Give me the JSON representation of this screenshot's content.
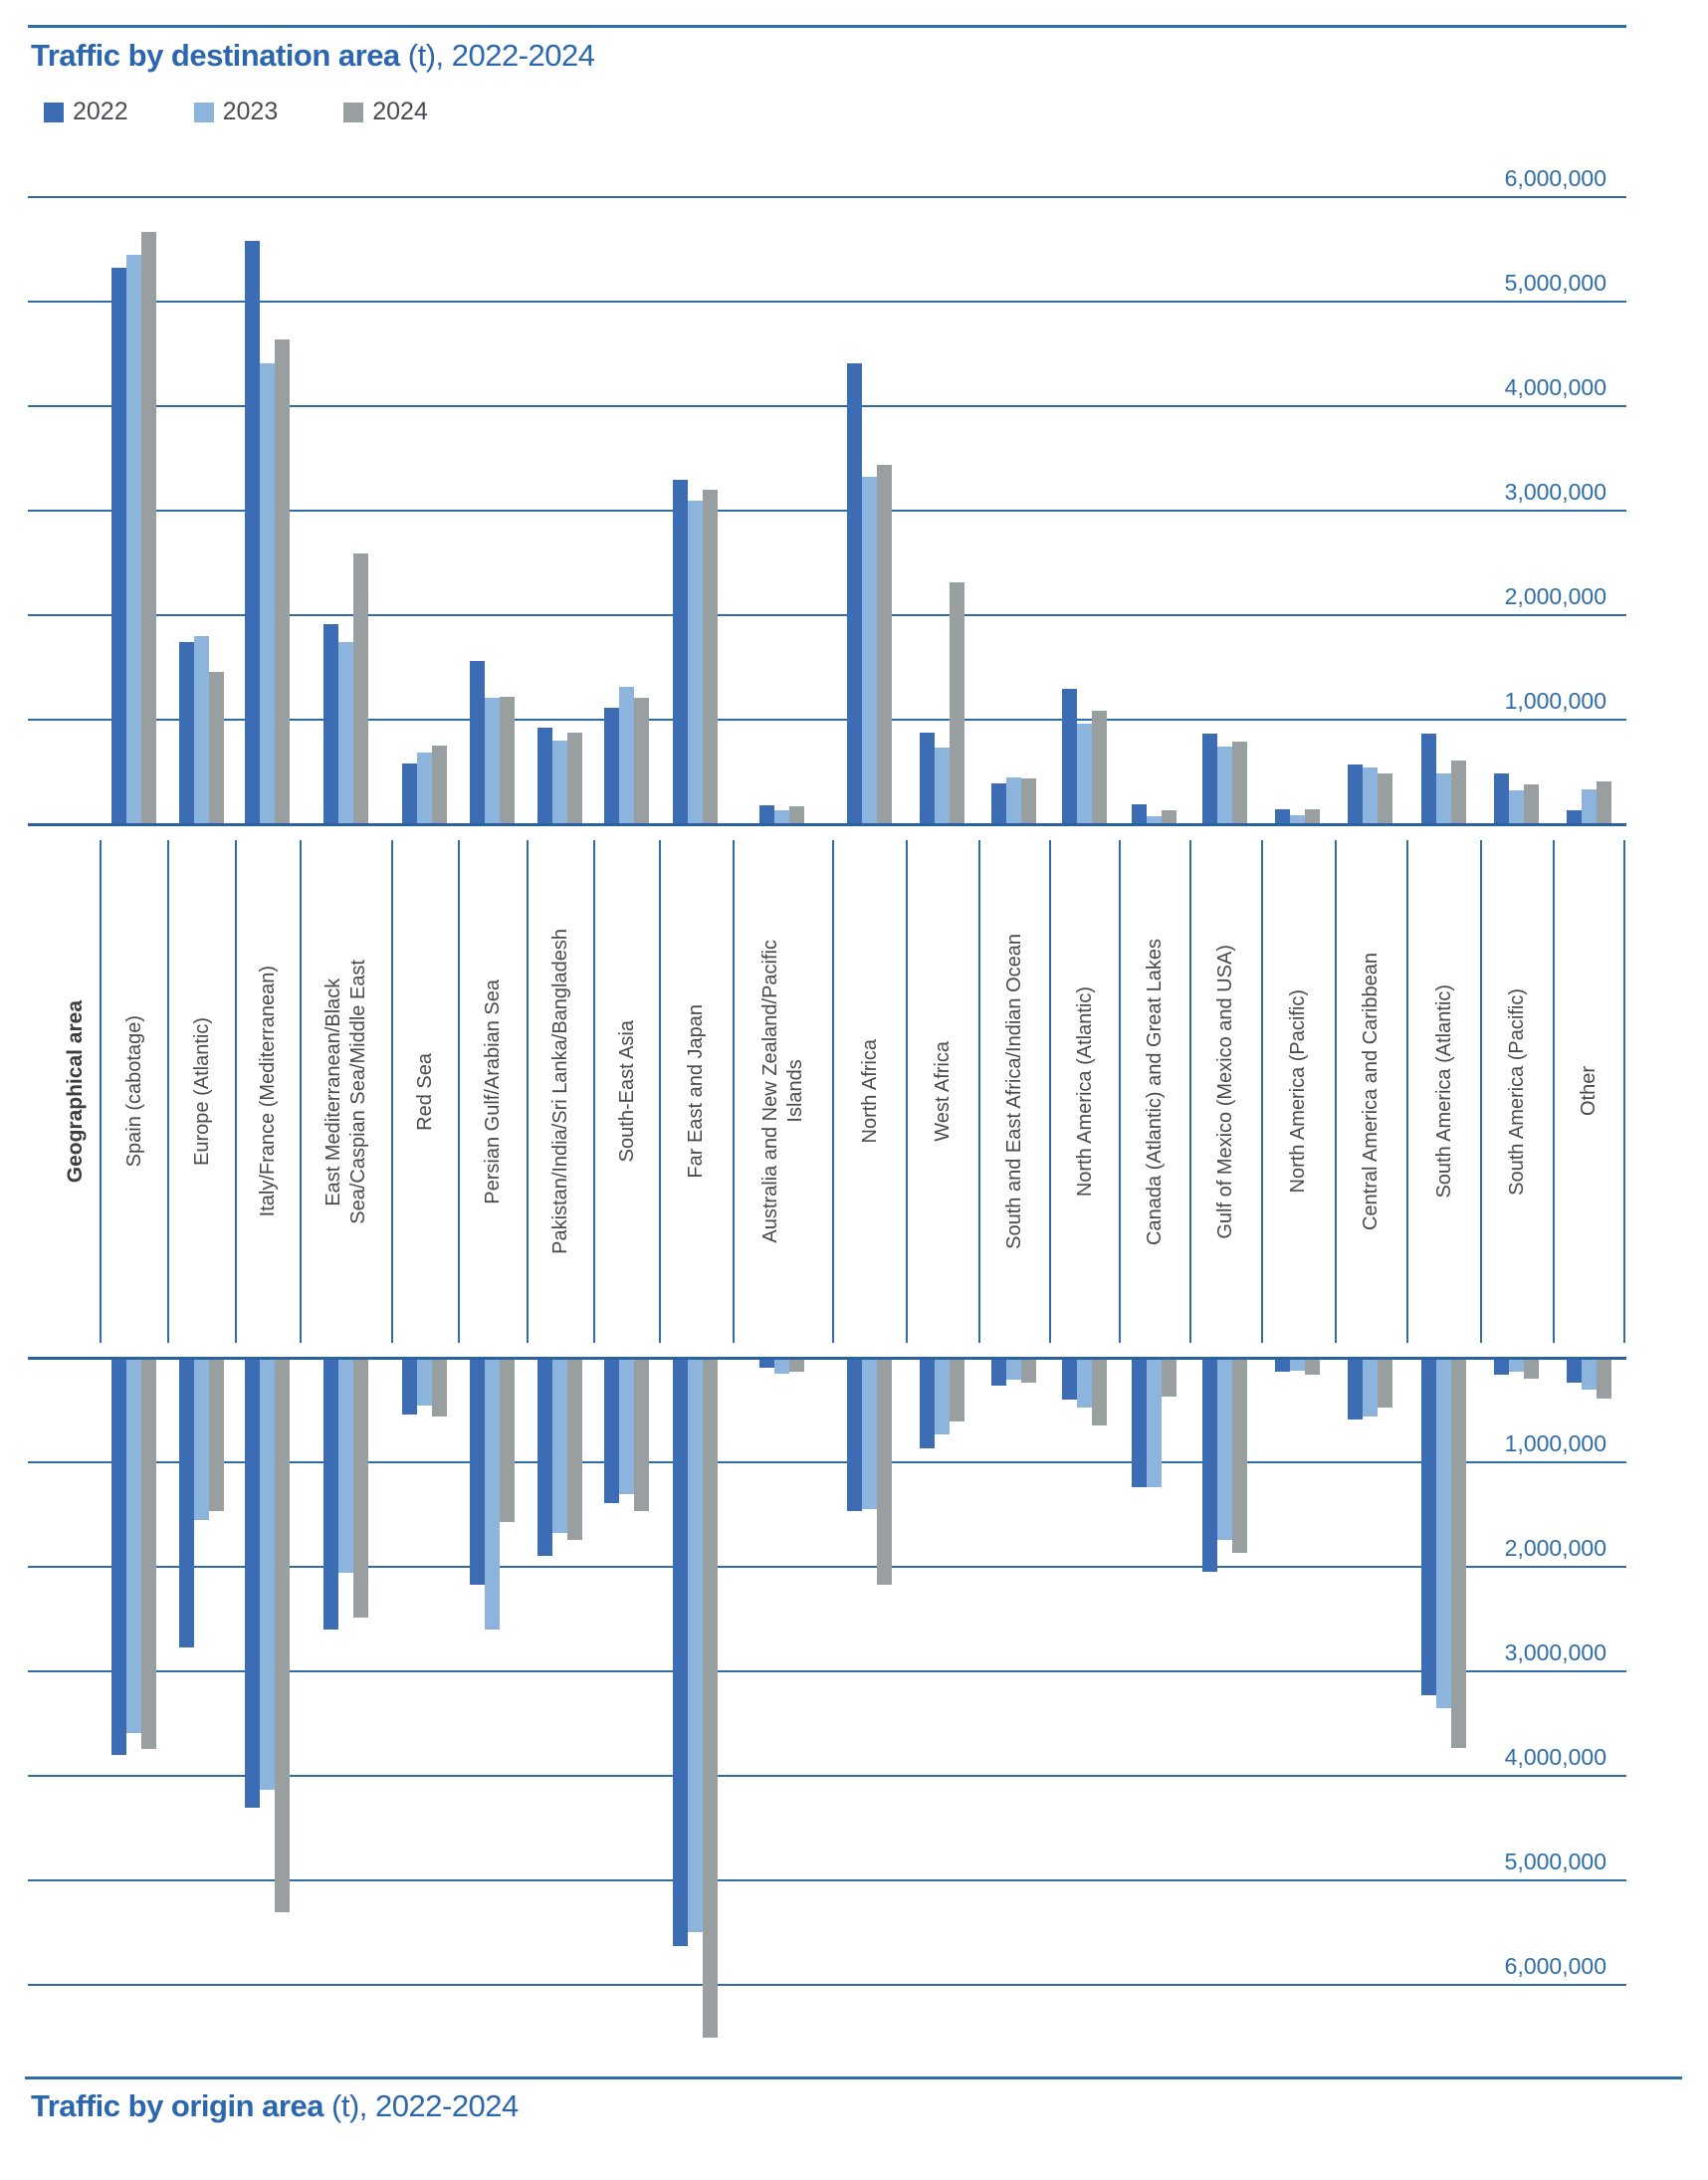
{
  "legend": {
    "items": [
      {
        "label": "2022",
        "color": "#3c6cb4"
      },
      {
        "label": "2023",
        "color": "#8cb4dd"
      },
      {
        "label": "2024",
        "color": "#999ea1"
      }
    ]
  },
  "row_header_label": "Geographical area",
  "colors": {
    "bar_2022": "#3c6cb4",
    "bar_2023": "#8cb4dd",
    "bar_2024": "#999ea1",
    "axis_line": "#2e6da8",
    "title_text": "#2b66ae",
    "category_text": "#4a4a4a"
  },
  "chart_data": [
    {
      "type": "bar",
      "title": "Traffic by destination area (t), 2022-2024",
      "title_bold": "Traffic by destination area",
      "title_rest": " (t), 2022-2024",
      "orientation": "up",
      "unit": "t",
      "ylim": [
        0,
        6000000
      ],
      "grid": true,
      "legend_position": "top-left",
      "axis_tick_labels": [
        "1,000,000",
        "2,000,000",
        "3,000,000",
        "4,000,000",
        "5,000,000",
        "6,000,000"
      ],
      "categories": [
        "Spain (cabotage)",
        "Europe (Atlantic)",
        "Italy/France (Mediterranean)",
        "East Mediterranean/Black\nSea/Caspian Sea/Middle East",
        "Red Sea",
        "Persian Gulf/Arabian Sea",
        "Pakistan/India/Sri Lanka/Bangladesh",
        "South-East Asia",
        "Far East and Japan",
        "Australia and New Zealand/Pacific\nIslands",
        "North Africa",
        "West Africa",
        "South and East Africa/Indian Ocean",
        "North America (Atlantic)",
        "Canada (Atlantic) and Great Lakes",
        "Gulf of Mexico (Mexico and USA)",
        "North America (Pacific)",
        "Central America and Caribbean",
        "South America (Atlantic)",
        "South America (Pacific)",
        "Other"
      ],
      "series": [
        {
          "name": "2022",
          "values": [
            5310000,
            1730000,
            5570000,
            1900000,
            570000,
            1550000,
            910000,
            1100000,
            3290000,
            170000,
            4400000,
            870000,
            380000,
            1290000,
            180000,
            860000,
            130000,
            560000,
            860000,
            480000,
            120000
          ]
        },
        {
          "name": "2023",
          "values": [
            5440000,
            1790000,
            4400000,
            1730000,
            680000,
            1200000,
            790000,
            1300000,
            3090000,
            120000,
            3310000,
            720000,
            440000,
            950000,
            70000,
            730000,
            80000,
            530000,
            480000,
            310000,
            320000
          ]
        },
        {
          "name": "2024",
          "values": [
            5660000,
            1450000,
            4630000,
            2580000,
            740000,
            1210000,
            870000,
            1200000,
            3190000,
            160000,
            3430000,
            2300000,
            430000,
            1080000,
            120000,
            780000,
            130000,
            480000,
            600000,
            370000,
            400000
          ]
        }
      ]
    },
    {
      "type": "bar",
      "title": "Traffic by origin area (t), 2022-2024",
      "title_bold": "Traffic by origin area",
      "title_rest": " (t), 2022-2024",
      "orientation": "down",
      "unit": "t",
      "ylim": [
        0,
        6000000
      ],
      "grid": true,
      "axis_tick_labels": [
        "1,000,000",
        "2,000,000",
        "3,000,000",
        "4,000,000",
        "5,000,000",
        "6,000,000"
      ],
      "categories_note": "shares the same category columns as the destination chart",
      "series": [
        {
          "name": "2022",
          "values": [
            3780000,
            2750000,
            4290000,
            2580000,
            520000,
            2150000,
            1880000,
            1370000,
            5610000,
            80000,
            1450000,
            850000,
            250000,
            380000,
            1220000,
            2030000,
            110000,
            570000,
            3210000,
            140000,
            220000
          ]
        },
        {
          "name": "2023",
          "values": [
            3570000,
            1530000,
            4110000,
            2040000,
            440000,
            2580000,
            1660000,
            1290000,
            5480000,
            130000,
            1430000,
            710000,
            190000,
            460000,
            1220000,
            1720000,
            100000,
            540000,
            3330000,
            110000,
            290000
          ]
        },
        {
          "name": "2024",
          "values": [
            3720000,
            1450000,
            5290000,
            2470000,
            540000,
            1550000,
            1720000,
            1450000,
            6490000,
            110000,
            2150000,
            590000,
            220000,
            630000,
            350000,
            1850000,
            140000,
            460000,
            3710000,
            180000,
            370000
          ]
        }
      ]
    }
  ]
}
